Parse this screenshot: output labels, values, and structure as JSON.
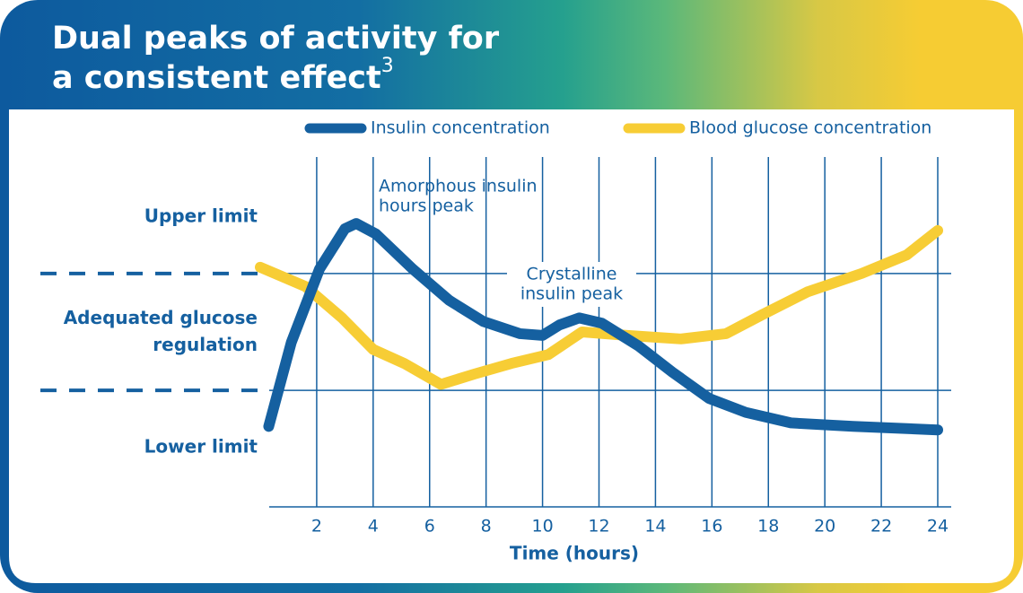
{
  "chart_data": {
    "type": "line",
    "title": "Dual peaks of activity for a consistent effect",
    "title_superscript": "3",
    "xlabel": "Time (hours)",
    "xlim": [
      0,
      24
    ],
    "xticks": [
      2,
      4,
      6,
      8,
      10,
      12,
      14,
      16,
      18,
      20,
      22,
      24
    ],
    "ylim": [
      0,
      100
    ],
    "yticks": [
      {
        "value": 83,
        "label": "Upper limit"
      },
      {
        "value": 50,
        "label": "Adequated glucose regulation"
      },
      {
        "value": 17,
        "label": "Lower limit"
      }
    ],
    "reference_lines": [
      66.7,
      33.3
    ],
    "grid": true,
    "legend": "top",
    "series": [
      {
        "name": "Blood glucose concentration",
        "color": "#f7cd35",
        "x": [
          0,
          1.6,
          2.9,
          4,
          5.1,
          6.4,
          7.6,
          8.9,
          10.2,
          11.4,
          13,
          14.9,
          16.5,
          17.8,
          19.4,
          21.3,
          22.9,
          24
        ],
        "values": [
          68.5,
          63,
          54,
          45,
          41,
          35,
          38,
          41,
          43.5,
          50,
          49,
          48,
          49.5,
          55,
          61.5,
          66.7,
          72,
          79
        ]
      },
      {
        "name": "Insulin concentration",
        "color": "#1560a0",
        "x": [
          0.3,
          1.1,
          2.1,
          3,
          3.4,
          4.1,
          5.4,
          6.7,
          7.9,
          9.2,
          10,
          10.6,
          11.3,
          12.1,
          13.4,
          14.6,
          15.9,
          17.2,
          18.8,
          21,
          24
        ],
        "values": [
          23,
          47,
          68,
          79.5,
          81,
          78,
          68,
          59,
          53,
          49.5,
          49,
          52,
          54,
          52.5,
          46,
          38.5,
          31,
          27,
          24,
          23,
          22
        ]
      }
    ],
    "annotations": [
      {
        "lines": [
          "Amorphous insulin",
          "hours peak"
        ]
      },
      {
        "lines": [
          "Crystalline",
          "insulin peak"
        ]
      }
    ]
  }
}
